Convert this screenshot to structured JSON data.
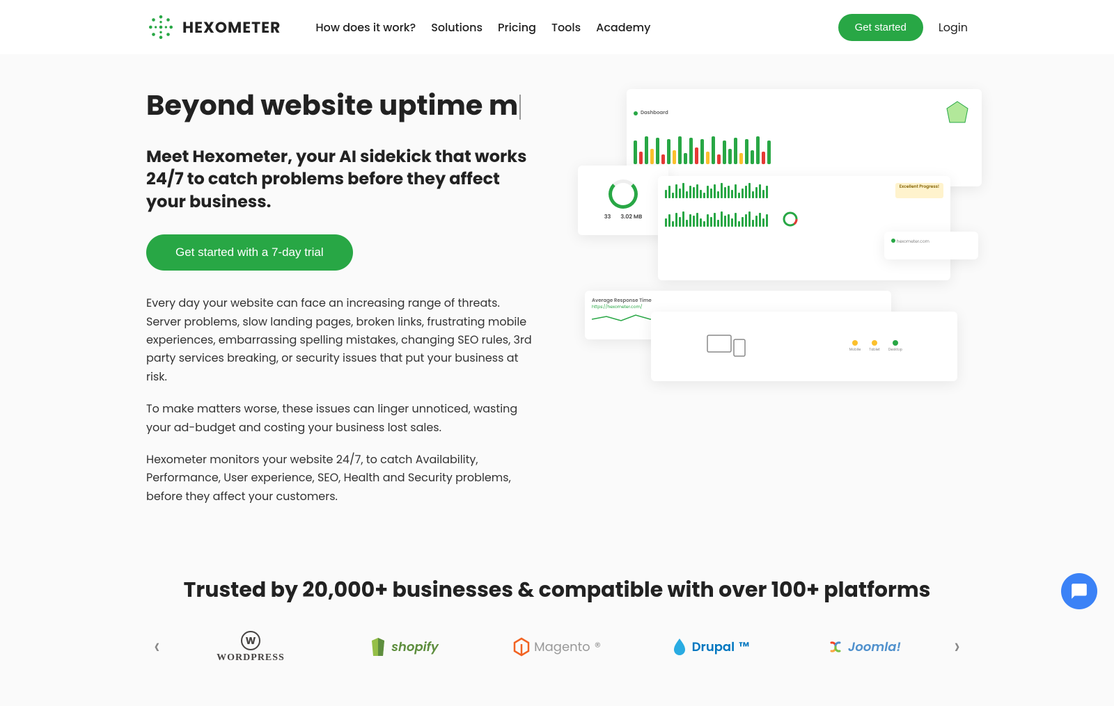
{
  "brand": {
    "name": "HEXOMETER",
    "accent": "#28a745"
  },
  "nav": {
    "items": [
      "How does it work?",
      "Solutions",
      "Pricing",
      "Tools",
      "Academy"
    ],
    "cta": "Get started",
    "login": "Login"
  },
  "hero": {
    "headline": "Beyond  website uptime m",
    "subhead": "Meet Hexometer, your AI sidekick that works 24/7 to catch problems before they affect your business.",
    "cta": "Get started with a 7-day trial",
    "para1": "Every day your website can face an increasing range of threats. Server problems, slow landing pages, broken links, frustrating mobile experiences, embarrassing spelling mistakes, changing SEO rules, 3rd party services breaking, or security issues that put your business at risk.",
    "para2": "To make matters worse, these issues can linger unnoticed, wasting your ad-budget and costing your business lost sales.",
    "para3": "Hexometer monitors your website 24/7, to catch Availability, Performance, User experience, SEO, Health and Security problems, before they affect your customers."
  },
  "dashboard": {
    "title": "Dashboard",
    "stat1": "33",
    "stat2": "3.02 MB",
    "badge": "Excellent Progress!",
    "bars_main": [
      34,
      18,
      40,
      22,
      38,
      14,
      36,
      20,
      40,
      16,
      38,
      24,
      36,
      18,
      40,
      14,
      34,
      22,
      38,
      16,
      36,
      20,
      40,
      18,
      34
    ],
    "bar_colors": [
      "#28a745",
      "#e53935",
      "#28a745",
      "#fbc02d",
      "#28a745",
      "#e53935",
      "#28a745",
      "#fbc02d",
      "#28a745",
      "#28a745",
      "#28a745",
      "#e53935",
      "#28a745",
      "#fbc02d",
      "#28a745",
      "#e53935",
      "#28a745",
      "#28a745",
      "#28a745",
      "#fbc02d",
      "#28a745",
      "#28a745",
      "#28a745",
      "#e53935",
      "#28a745"
    ],
    "mini_bars": [
      12,
      18,
      8,
      20,
      14,
      22,
      10,
      18,
      16,
      20,
      12,
      8,
      18,
      14,
      20,
      10,
      22,
      16,
      18,
      12,
      20,
      8,
      14,
      18,
      22,
      10,
      16,
      20,
      12,
      18
    ],
    "response": "Average Response Time",
    "url": "https://hexometer.com/"
  },
  "trusted": "Trusted by 20,000+ businesses & compatible with over 100+ platforms",
  "platforms": [
    {
      "name": "WORDPRESS",
      "color": "#464342"
    },
    {
      "name": "shopify",
      "color": "#5e8e3e"
    },
    {
      "name": "Magento",
      "color": "#f26322"
    },
    {
      "name": "Drupal",
      "color": "#0077c0"
    },
    {
      "name": "Joomla!",
      "color": "#5091cd"
    }
  ]
}
